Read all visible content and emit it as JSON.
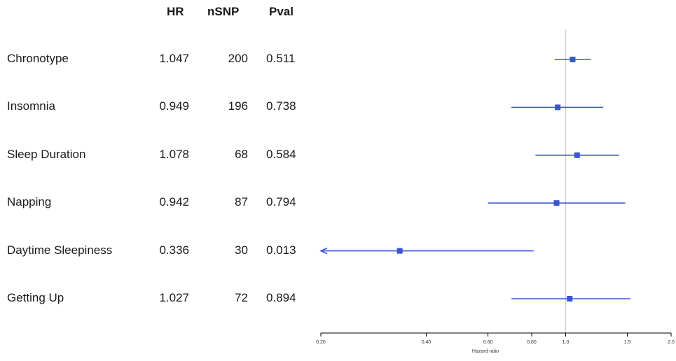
{
  "table": {
    "headers": {
      "hr": "HR",
      "nsnp": "nSNP",
      "pval": "Pval"
    }
  },
  "chart_data": {
    "type": "forest",
    "xlabel": "Hazard ratio",
    "x_scale": "log",
    "xlim": [
      0.2,
      2.0
    ],
    "x_ticks": [
      0.2,
      0.4,
      0.6,
      0.8,
      1.0,
      1.5,
      2.0
    ],
    "x_tick_labels": [
      "0.20",
      "0.40",
      "0.60",
      "0.80",
      "1.0",
      "1.5",
      "2.0"
    ],
    "reference_line": 1.0,
    "color": "#3a55d4",
    "rows": [
      {
        "label": "Chronotype",
        "hr": 1.047,
        "nsnp": 200,
        "pval": "0.511",
        "lower": 0.93,
        "upper": 1.18,
        "hr_text": "1.047",
        "nsnp_text": "200"
      },
      {
        "label": "Insomnia",
        "hr": 0.949,
        "nsnp": 196,
        "pval": "0.738",
        "lower": 0.7,
        "upper": 1.28,
        "hr_text": "0.949",
        "nsnp_text": "196"
      },
      {
        "label": "Sleep Duration",
        "hr": 1.078,
        "nsnp": 68,
        "pval": "0.584",
        "lower": 0.82,
        "upper": 1.42,
        "hr_text": "1.078",
        "nsnp_text": "68"
      },
      {
        "label": "Napping",
        "hr": 0.942,
        "nsnp": 87,
        "pval": "0.794",
        "lower": 0.6,
        "upper": 1.48,
        "hr_text": "0.942",
        "nsnp_text": "87"
      },
      {
        "label": "Daytime Sleepiness",
        "hr": 0.336,
        "nsnp": 30,
        "pval": "0.013",
        "lower": 0.2,
        "upper": 0.81,
        "lower_truncated": true,
        "hr_text": "0.336",
        "nsnp_text": "30"
      },
      {
        "label": "Getting Up",
        "hr": 1.027,
        "nsnp": 72,
        "pval": "0.894",
        "lower": 0.7,
        "upper": 1.53,
        "hr_text": "1.027",
        "nsnp_text": "72"
      }
    ]
  }
}
